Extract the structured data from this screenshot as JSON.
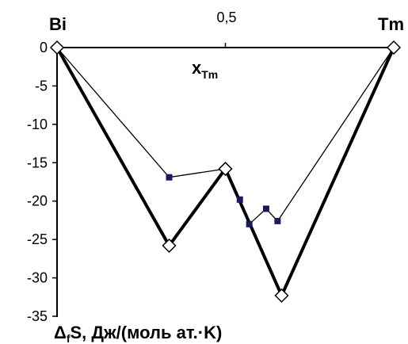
{
  "chart_data": {
    "type": "line",
    "corner_labels": {
      "left": "Bi",
      "right": "Tm"
    },
    "top_tick": "0,5",
    "x_axis_label": {
      "main": "x",
      "sub": "Tm"
    },
    "y_axis_label": {
      "delta": "Δ",
      "sub": "f",
      "rest": "S, Дж/(моль ат.·K)"
    },
    "xlim": [
      0,
      1
    ],
    "ylim": [
      -35,
      0
    ],
    "yticks": [
      {
        "value": 0,
        "label": "0"
      },
      {
        "value": -5,
        "label": "-5"
      },
      {
        "value": -10,
        "label": "-10"
      },
      {
        "value": -15,
        "label": "-15"
      },
      {
        "value": -20,
        "label": "-20"
      },
      {
        "value": -25,
        "label": "-25"
      },
      {
        "value": -30,
        "label": "-30"
      },
      {
        "value": -35,
        "label": "-35"
      }
    ],
    "grid": false,
    "series": [
      {
        "marker": "square",
        "color": "#000000",
        "marker_color": "#1a1a5e",
        "line_style": "thin",
        "points": [
          {
            "x": 0,
            "y": 0
          },
          {
            "x": 0.333,
            "y": -16.9
          },
          {
            "x": 0.5,
            "y": -15.8
          },
          {
            "x": 0.543,
            "y": -19.8
          },
          {
            "x": 0.571,
            "y": -23.0
          },
          {
            "x": 0.621,
            "y": -21.0
          },
          {
            "x": 0.655,
            "y": -22.6
          },
          {
            "x": 1,
            "y": 0
          }
        ]
      },
      {
        "marker": "diamond",
        "color": "#000000",
        "line_style": "thick",
        "points": [
          {
            "x": 0,
            "y": 0
          },
          {
            "x": 0.333,
            "y": -25.8
          },
          {
            "x": 0.5,
            "y": -15.8
          },
          {
            "x": 0.667,
            "y": -32.3
          },
          {
            "x": 1,
            "y": 0
          }
        ]
      }
    ]
  }
}
